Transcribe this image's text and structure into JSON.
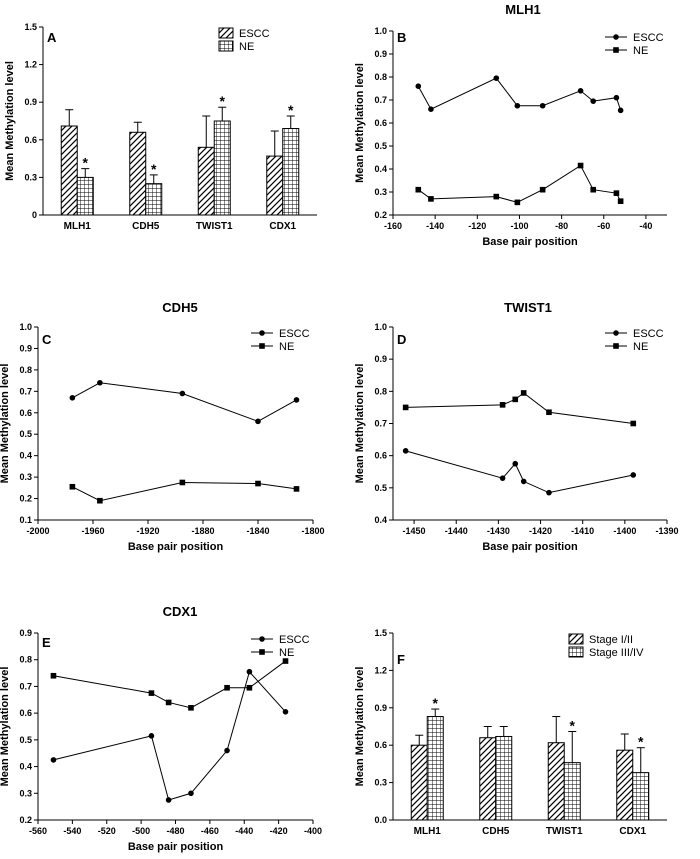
{
  "chart_data": [
    {
      "panel": "A",
      "type": "bar",
      "title": "",
      "ylabel": "Mean Methylation level",
      "xlabel": "",
      "ylim": [
        0,
        1.5
      ],
      "yticks": [
        "0",
        "0.3",
        "0.6",
        "0.9",
        "1.2",
        "1.5"
      ],
      "categories": [
        "MLH1",
        "CDH5",
        "TWIST1",
        "CDX1"
      ],
      "series": [
        {
          "name": "ESCC",
          "pattern": "hatch",
          "values": [
            0.71,
            0.66,
            0.54,
            0.47
          ],
          "errors": [
            0.13,
            0.08,
            0.25,
            0.2
          ]
        },
        {
          "name": "NE",
          "pattern": "grid",
          "values": [
            0.3,
            0.25,
            0.75,
            0.69
          ],
          "errors": [
            0.07,
            0.07,
            0.11,
            0.1
          ]
        }
      ],
      "significance": [
        "*",
        "*",
        "*",
        "*"
      ],
      "legend_position": "top-right"
    },
    {
      "panel": "B",
      "type": "line",
      "title": "MLH1",
      "ylabel": "Mean Methylation level",
      "xlabel": "Base pair position",
      "xlim": [
        -160,
        -30
      ],
      "ylim": [
        0.2,
        1.0
      ],
      "xticks": [
        "-160",
        "-140",
        "-120",
        "-100",
        "-80",
        "-60",
        "-40"
      ],
      "yticks": [
        "0.2",
        "0.3",
        "0.4",
        "0.5",
        "0.6",
        "0.7",
        "0.8",
        "0.9",
        "1.0"
      ],
      "series": [
        {
          "name": "ESCC",
          "marker": "circle",
          "x": [
            -148,
            -142,
            -111,
            -101,
            -89,
            -71,
            -65,
            -54,
            -52
          ],
          "y": [
            0.76,
            0.66,
            0.795,
            0.675,
            0.675,
            0.74,
            0.695,
            0.71,
            0.655
          ]
        },
        {
          "name": "NE",
          "marker": "square",
          "x": [
            -148,
            -142,
            -111,
            -101,
            -89,
            -71,
            -65,
            -54,
            -52
          ],
          "y": [
            0.31,
            0.27,
            0.28,
            0.255,
            0.31,
            0.415,
            0.31,
            0.295,
            0.26
          ]
        }
      ],
      "legend_position": "top-right"
    },
    {
      "panel": "C",
      "type": "line",
      "title": "CDH5",
      "ylabel": "Mean Methylation level",
      "xlabel": "Base pair position",
      "xlim": [
        -2000,
        -1800
      ],
      "ylim": [
        0.1,
        1.0
      ],
      "xticks": [
        "-2000",
        "-1960",
        "-1920",
        "-1880",
        "-1840",
        "-1800"
      ],
      "yticks": [
        "0.1",
        "0.2",
        "0.3",
        "0.4",
        "0.5",
        "0.6",
        "0.7",
        "0.8",
        "0.9",
        "1.0"
      ],
      "series": [
        {
          "name": "ESCC",
          "marker": "circle",
          "x": [
            -1975,
            -1955,
            -1895,
            -1840,
            -1812
          ],
          "y": [
            0.67,
            0.74,
            0.69,
            0.56,
            0.66
          ]
        },
        {
          "name": "NE",
          "marker": "square",
          "x": [
            -1975,
            -1955,
            -1895,
            -1840,
            -1812
          ],
          "y": [
            0.255,
            0.19,
            0.275,
            0.27,
            0.245
          ]
        }
      ],
      "legend_position": "top-right"
    },
    {
      "panel": "D",
      "type": "line",
      "title": "TWIST1",
      "ylabel": "Mean Methylation level",
      "xlabel": "Base pair position",
      "xlim": [
        -1455,
        -1390
      ],
      "ylim": [
        0.4,
        1.0
      ],
      "xticks": [
        "-1450",
        "-1440",
        "-1430",
        "-1420",
        "-1410",
        "-1400",
        "-1390"
      ],
      "yticks": [
        "0.4",
        "0.5",
        "0.6",
        "0.7",
        "0.8",
        "0.9",
        "1.0"
      ],
      "series": [
        {
          "name": "ESCC",
          "marker": "circle",
          "x": [
            -1452,
            -1429,
            -1426,
            -1424,
            -1418,
            -1398
          ],
          "y": [
            0.615,
            0.53,
            0.575,
            0.52,
            0.485,
            0.54
          ]
        },
        {
          "name": "NE",
          "marker": "square",
          "x": [
            -1452,
            -1429,
            -1426,
            -1424,
            -1418,
            -1398
          ],
          "y": [
            0.75,
            0.758,
            0.775,
            0.795,
            0.735,
            0.7
          ]
        }
      ],
      "legend_position": "top-right"
    },
    {
      "panel": "E",
      "type": "line",
      "title": "CDX1",
      "ylabel": "Mean Methylation level",
      "xlabel": "Base pair position",
      "xlim": [
        -560,
        -400
      ],
      "ylim": [
        0.2,
        0.9
      ],
      "xticks": [
        "-560",
        "-540",
        "-520",
        "-500",
        "-480",
        "-460",
        "-440",
        "-420",
        "-400"
      ],
      "yticks": [
        "0.2",
        "0.3",
        "0.4",
        "0.5",
        "0.6",
        "0.7",
        "0.8",
        "0.9"
      ],
      "series": [
        {
          "name": "ESCC",
          "marker": "circle",
          "x": [
            -551,
            -494,
            -484,
            -471,
            -450,
            -437,
            -416
          ],
          "y": [
            0.425,
            0.515,
            0.275,
            0.3,
            0.46,
            0.755,
            0.605
          ]
        },
        {
          "name": "NE",
          "marker": "square",
          "x": [
            -551,
            -494,
            -484,
            -471,
            -450,
            -437,
            -416
          ],
          "y": [
            0.74,
            0.675,
            0.64,
            0.62,
            0.695,
            0.695,
            0.795
          ]
        }
      ],
      "legend_position": "top-right"
    },
    {
      "panel": "F",
      "type": "bar",
      "title": "",
      "ylabel": "Mean Methylation level",
      "xlabel": "",
      "ylim": [
        0,
        1.5
      ],
      "yticks": [
        "0.0",
        "0.3",
        "0.6",
        "0.9",
        "1.2",
        "1.5"
      ],
      "categories": [
        "MLH1",
        "CDH5",
        "TWIST1",
        "CDX1"
      ],
      "series": [
        {
          "name": "Stage I/II",
          "pattern": "hatch",
          "values": [
            0.6,
            0.66,
            0.62,
            0.56
          ],
          "errors": [
            0.08,
            0.09,
            0.21,
            0.13
          ]
        },
        {
          "name": "Stage III/IV",
          "pattern": "grid",
          "values": [
            0.83,
            0.67,
            0.46,
            0.38
          ],
          "errors": [
            0.06,
            0.08,
            0.25,
            0.2
          ]
        }
      ],
      "significance": [
        "*",
        "",
        "*",
        "*"
      ],
      "legend_position": "top-right"
    }
  ]
}
